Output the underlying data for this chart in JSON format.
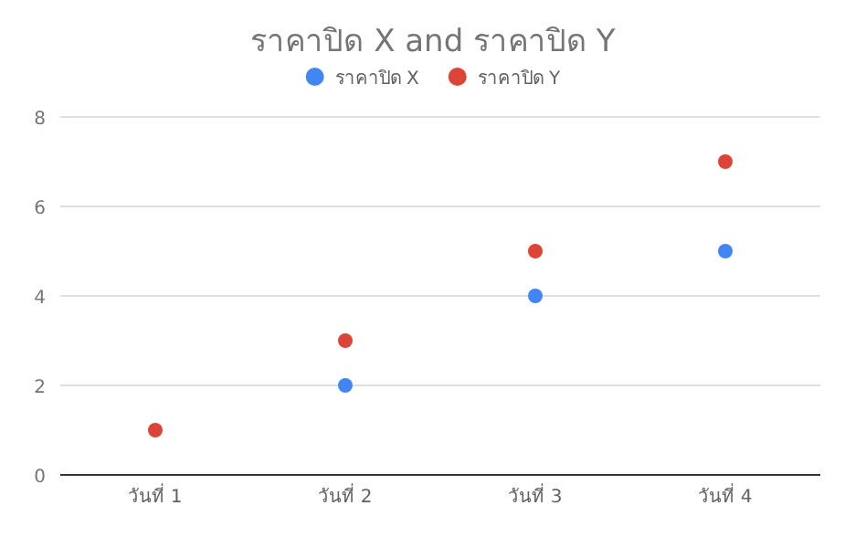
{
  "chart_data": {
    "type": "scatter",
    "title": "ราคาปิด X and ราคาปิด Y",
    "categories": [
      "วันที่ 1",
      "วันที่ 2",
      "วันที่ 3",
      "วันที่ 4"
    ],
    "series": [
      {
        "name": "ราคาปิด X",
        "color": "#4285f4",
        "values": [
          null,
          2,
          4,
          5
        ]
      },
      {
        "name": "ราคาปิด Y",
        "color": "#db4437",
        "values": [
          1,
          3,
          5,
          7
        ]
      }
    ],
    "ylim": [
      0,
      8
    ],
    "yticks": [
      0,
      2,
      4,
      6,
      8
    ],
    "grid": "y",
    "legend": "top",
    "marker": "circle"
  }
}
